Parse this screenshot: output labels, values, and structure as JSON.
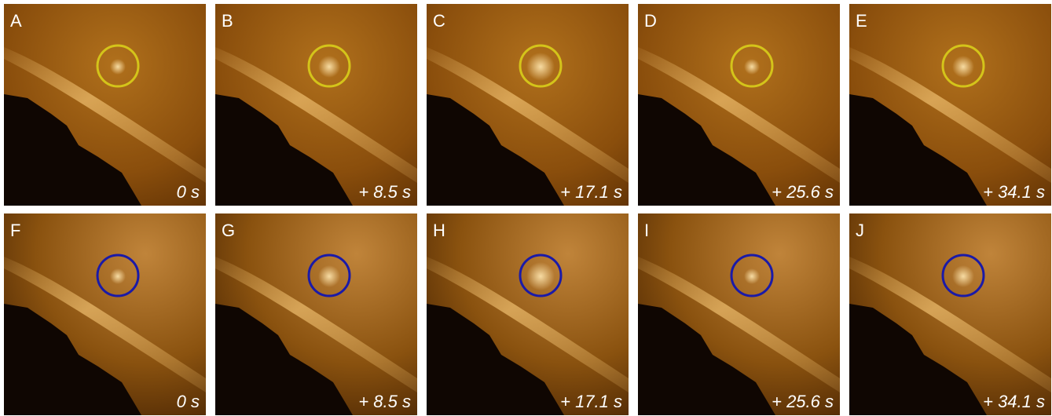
{
  "rows": [
    {
      "panels": [
        {
          "label": "A",
          "time": "0 s"
        },
        {
          "label": "B",
          "time": "+ 8.5 s"
        },
        {
          "label": "C",
          "time": "+ 17.1 s"
        },
        {
          "label": "D",
          "time": "+ 25.6 s"
        },
        {
          "label": "E",
          "time": "+ 34.1 s"
        }
      ]
    },
    {
      "panels": [
        {
          "label": "F",
          "time": "0 s"
        },
        {
          "label": "G",
          "time": "+ 8.5 s"
        },
        {
          "label": "H",
          "time": "+ 17.1 s"
        },
        {
          "label": "I",
          "time": "+ 25.6 s"
        },
        {
          "label": "J",
          "time": "+ 34.1 s"
        }
      ]
    }
  ]
}
